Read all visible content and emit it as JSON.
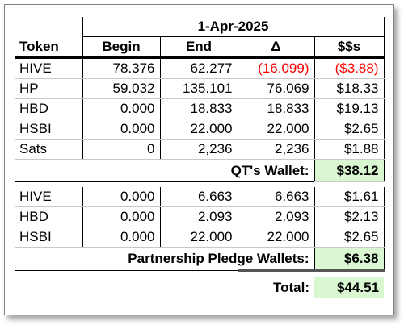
{
  "date": "1-Apr-2025",
  "headers": {
    "token": "Token",
    "begin": "Begin",
    "end": "End",
    "delta": "Δ",
    "usd": "$$s"
  },
  "qt_rows": [
    {
      "token": "HIVE",
      "begin": "78.376",
      "end": "62.277",
      "delta": "(16.099)",
      "usd": "($3.88)"
    },
    {
      "token": "HP",
      "begin": "59.032",
      "end": "135.101",
      "delta": "76.069",
      "usd": "$18.33"
    },
    {
      "token": "HBD",
      "begin": "0.000",
      "end": "18.833",
      "delta": "18.833",
      "usd": "$19.13"
    },
    {
      "token": "HSBI",
      "begin": "0.000",
      "end": "22.000",
      "delta": "22.000",
      "usd": "$2.65"
    },
    {
      "token": "Sats",
      "begin": "0",
      "end": "2,236",
      "delta": "2,236",
      "usd": "$1.88"
    }
  ],
  "qt_wallet": {
    "label": "QT's Wallet:",
    "value": "$38.12"
  },
  "pledge_rows": [
    {
      "token": "HIVE",
      "begin": "0.000",
      "end": "6.663",
      "delta": "6.663",
      "usd": "$1.61"
    },
    {
      "token": "HBD",
      "begin": "0.000",
      "end": "2.093",
      "delta": "2.093",
      "usd": "$2.13"
    },
    {
      "token": "HSBI",
      "begin": "0.000",
      "end": "22.000",
      "delta": "22.000",
      "usd": "$2.65"
    }
  ],
  "pledge_wallet": {
    "label": "Partnership Pledge Wallets:",
    "value": "$6.38"
  },
  "total": {
    "label": "Total:",
    "value": "$44.51"
  },
  "colors": {
    "negative": "#ff0000",
    "highlight": "#d9f7d1"
  }
}
